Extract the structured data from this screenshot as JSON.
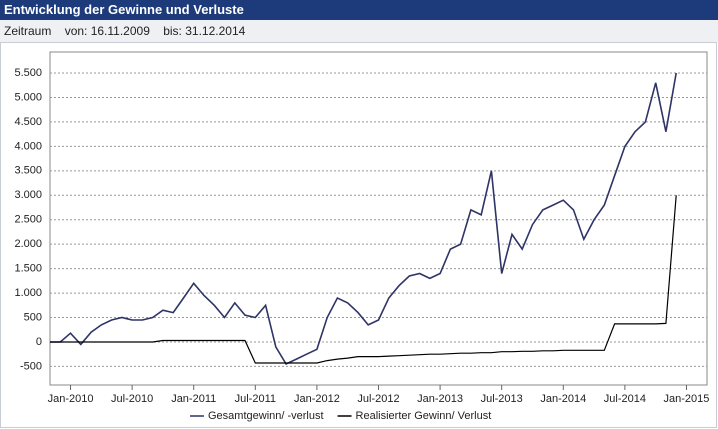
{
  "header": {
    "title": "Entwicklung der Gewinne und Verluste"
  },
  "filter": {
    "label": "Zeitraum",
    "from": "von: 16.11.2009",
    "to": "bis: 31.12.2014"
  },
  "chart_data": {
    "type": "line",
    "x": [
      "2009-11",
      "2009-12",
      "2010-01",
      "2010-02",
      "2010-03",
      "2010-04",
      "2010-05",
      "2010-06",
      "2010-07",
      "2010-08",
      "2010-09",
      "2010-10",
      "2010-11",
      "2010-12",
      "2011-01",
      "2011-02",
      "2011-03",
      "2011-04",
      "2011-05",
      "2011-06",
      "2011-07",
      "2011-08",
      "2011-09",
      "2011-10",
      "2011-11",
      "2011-12",
      "2012-01",
      "2012-02",
      "2012-03",
      "2012-04",
      "2012-05",
      "2012-06",
      "2012-07",
      "2012-08",
      "2012-09",
      "2012-10",
      "2012-11",
      "2012-12",
      "2013-01",
      "2013-02",
      "2013-03",
      "2013-04",
      "2013-05",
      "2013-06",
      "2013-07",
      "2013-08",
      "2013-09",
      "2013-10",
      "2013-11",
      "2013-12",
      "2014-01",
      "2014-02",
      "2014-03",
      "2014-04",
      "2014-05",
      "2014-06",
      "2014-07",
      "2014-08",
      "2014-09",
      "2014-10",
      "2014-11",
      "2014-12"
    ],
    "series": [
      {
        "name": "Gesamtgewinn/ -verlust",
        "color": "#2e3466",
        "values": [
          0,
          0,
          180,
          -50,
          200,
          350,
          450,
          500,
          450,
          450,
          500,
          650,
          600,
          900,
          1200,
          950,
          750,
          500,
          800,
          550,
          500,
          750,
          -100,
          -450,
          -350,
          -250,
          -150,
          500,
          900,
          800,
          600,
          350,
          450,
          900,
          1150,
          1350,
          1400,
          1300,
          1400,
          1900,
          2000,
          2700,
          2600,
          3500,
          1400,
          2200,
          1900,
          2400,
          2700,
          2800,
          2900,
          2700,
          2100,
          2500,
          2800,
          3400,
          4000,
          4300,
          4500,
          5300,
          4300,
          5500
        ]
      },
      {
        "name": "Realisierter Gewinn/ Verlust",
        "color": "#000000",
        "values": [
          0,
          0,
          0,
          0,
          0,
          0,
          0,
          0,
          0,
          0,
          0,
          30,
          30,
          30,
          30,
          30,
          30,
          30,
          30,
          30,
          -430,
          -430,
          -430,
          -430,
          -430,
          -430,
          -430,
          -380,
          -350,
          -330,
          -300,
          -300,
          -300,
          -290,
          -280,
          -270,
          -260,
          -250,
          -250,
          -240,
          -230,
          -230,
          -220,
          -220,
          -200,
          -200,
          -190,
          -190,
          -180,
          -180,
          -170,
          -170,
          -170,
          -170,
          -170,
          370,
          370,
          370,
          370,
          370,
          380,
          3000
        ]
      }
    ],
    "xlim": [
      "2009-11",
      "2015-03"
    ],
    "xticks": [
      {
        "value": "2010-01",
        "label": "Jan-2010"
      },
      {
        "value": "2010-07",
        "label": "Jul-2010"
      },
      {
        "value": "2011-01",
        "label": "Jan-2011"
      },
      {
        "value": "2011-07",
        "label": "Jul-2011"
      },
      {
        "value": "2012-01",
        "label": "Jan-2012"
      },
      {
        "value": "2012-07",
        "label": "Jul-2012"
      },
      {
        "value": "2013-01",
        "label": "Jan-2013"
      },
      {
        "value": "2013-07",
        "label": "Jul-2013"
      },
      {
        "value": "2014-01",
        "label": "Jan-2014"
      },
      {
        "value": "2014-07",
        "label": "Jul-2014"
      },
      {
        "value": "2015-01",
        "label": "Jan-2015"
      }
    ],
    "ylim": [
      -880,
      5930
    ],
    "yticks": [
      -500,
      0,
      500,
      {
        "value": 1000,
        "label": "1.000"
      },
      {
        "value": 1500,
        "label": "1.500"
      },
      {
        "value": 2000,
        "label": "2.000"
      },
      {
        "value": 2500,
        "label": "2.500"
      },
      {
        "value": 3000,
        "label": "3.000"
      },
      {
        "value": 3500,
        "label": "3.500"
      },
      {
        "value": 4000,
        "label": "4.000"
      },
      {
        "value": 4500,
        "label": "4.500"
      },
      {
        "value": 5000,
        "label": "5.000"
      },
      {
        "value": 5500,
        "label": "5.500"
      }
    ],
    "grid": true,
    "legend": "bottom"
  }
}
